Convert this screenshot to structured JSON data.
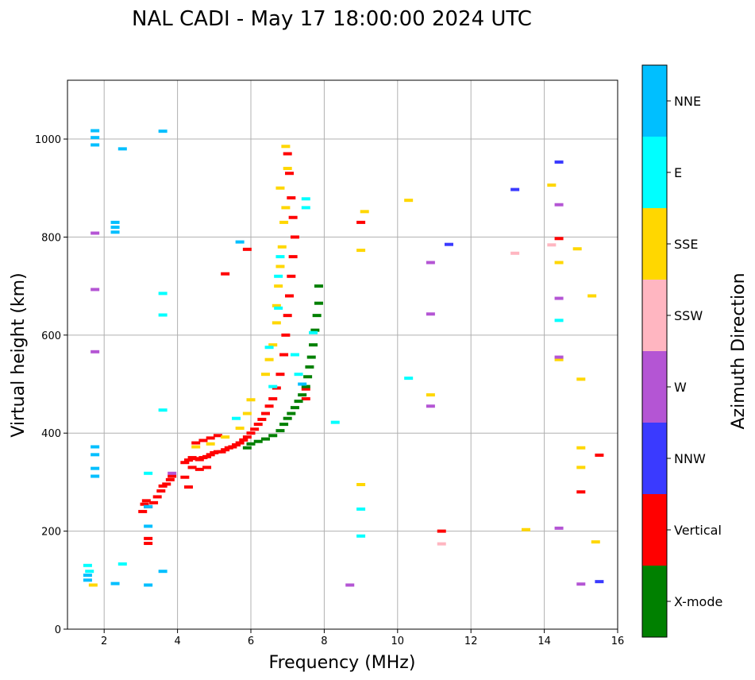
{
  "chart_data": {
    "type": "scatter",
    "title": "NAL CADI - May 17 18:00:00 2024 UTC",
    "xlabel": "Frequency (MHz)",
    "ylabel": "Virtual height (km)",
    "xlim": [
      1,
      16
    ],
    "ylim": [
      0,
      1120
    ],
    "xticks": [
      2,
      4,
      6,
      8,
      10,
      12,
      14,
      16
    ],
    "yticks": [
      0,
      200,
      400,
      600,
      800,
      1000
    ],
    "grid": true,
    "colorbar": {
      "label": "Azimuth Direction",
      "categories": [
        {
          "name": "X-mode",
          "color": "#008000"
        },
        {
          "name": "Vertical",
          "color": "#ff0000"
        },
        {
          "name": "NNW",
          "color": "#3a3aff"
        },
        {
          "name": "W",
          "color": "#b455d4"
        },
        {
          "name": "SSW",
          "color": "#ffb6c1"
        },
        {
          "name": "SSE",
          "color": "#ffd700"
        },
        {
          "name": "E",
          "color": "#00ffff"
        },
        {
          "name": "NNE",
          "color": "#00bfff"
        }
      ]
    },
    "series": [
      {
        "name": "Vertical",
        "points": [
          [
            3.05,
            240
          ],
          [
            3.1,
            255
          ],
          [
            3.15,
            262
          ],
          [
            3.2,
            250
          ],
          [
            3.35,
            258
          ],
          [
            3.45,
            270
          ],
          [
            3.55,
            282
          ],
          [
            3.6,
            292
          ],
          [
            3.7,
            296
          ],
          [
            3.8,
            305
          ],
          [
            3.85,
            312
          ],
          [
            4.2,
            340
          ],
          [
            4.3,
            345
          ],
          [
            4.4,
            350
          ],
          [
            4.5,
            348
          ],
          [
            4.6,
            346
          ],
          [
            4.7,
            350
          ],
          [
            4.8,
            352
          ],
          [
            4.9,
            356
          ],
          [
            5.0,
            360
          ],
          [
            5.1,
            362
          ],
          [
            5.2,
            362
          ],
          [
            5.3,
            366
          ],
          [
            5.4,
            370
          ],
          [
            5.5,
            372
          ],
          [
            5.6,
            376
          ],
          [
            5.7,
            380
          ],
          [
            5.8,
            386
          ],
          [
            5.9,
            392
          ],
          [
            6.0,
            400
          ],
          [
            6.1,
            408
          ],
          [
            6.2,
            418
          ],
          [
            6.3,
            428
          ],
          [
            6.4,
            440
          ],
          [
            6.5,
            455
          ],
          [
            6.6,
            470
          ],
          [
            6.7,
            492
          ],
          [
            6.8,
            520
          ],
          [
            6.9,
            560
          ],
          [
            6.95,
            600
          ],
          [
            7.0,
            640
          ],
          [
            7.05,
            680
          ],
          [
            7.1,
            720
          ],
          [
            7.15,
            760
          ],
          [
            7.2,
            800
          ],
          [
            7.15,
            840
          ],
          [
            7.1,
            880
          ],
          [
            7.05,
            930
          ],
          [
            7.0,
            970
          ],
          [
            4.5,
            380
          ],
          [
            4.7,
            385
          ],
          [
            4.9,
            390
          ],
          [
            5.1,
            395
          ],
          [
            4.4,
            330
          ],
          [
            4.6,
            326
          ],
          [
            4.8,
            330
          ],
          [
            4.2,
            310
          ],
          [
            4.3,
            290
          ],
          [
            3.2,
            185
          ],
          [
            3.2,
            175
          ],
          [
            5.9,
            775
          ],
          [
            5.3,
            725
          ],
          [
            7.5,
            490
          ],
          [
            7.5,
            470
          ],
          [
            9.0,
            830
          ],
          [
            11.2,
            200
          ],
          [
            14.4,
            797
          ],
          [
            15.0,
            280
          ],
          [
            15.5,
            355
          ]
        ]
      },
      {
        "name": "X-mode",
        "points": [
          [
            5.9,
            370
          ],
          [
            6.0,
            378
          ],
          [
            6.2,
            383
          ],
          [
            6.4,
            388
          ],
          [
            6.6,
            395
          ],
          [
            6.8,
            405
          ],
          [
            6.9,
            418
          ],
          [
            7.0,
            430
          ],
          [
            7.1,
            440
          ],
          [
            7.2,
            452
          ],
          [
            7.3,
            465
          ],
          [
            7.4,
            478
          ],
          [
            7.5,
            495
          ],
          [
            7.55,
            515
          ],
          [
            7.6,
            535
          ],
          [
            7.65,
            555
          ],
          [
            7.7,
            580
          ],
          [
            7.75,
            610
          ],
          [
            7.8,
            640
          ],
          [
            7.85,
            665
          ],
          [
            7.85,
            700
          ]
        ]
      },
      {
        "name": "SSE",
        "points": [
          [
            4.5,
            372
          ],
          [
            4.9,
            378
          ],
          [
            5.3,
            392
          ],
          [
            5.7,
            410
          ],
          [
            5.9,
            440
          ],
          [
            6.0,
            468
          ],
          [
            6.4,
            520
          ],
          [
            6.5,
            550
          ],
          [
            6.6,
            580
          ],
          [
            6.7,
            625
          ],
          [
            6.7,
            660
          ],
          [
            6.75,
            700
          ],
          [
            6.8,
            740
          ],
          [
            6.85,
            780
          ],
          [
            6.9,
            830
          ],
          [
            6.95,
            860
          ],
          [
            6.8,
            900
          ],
          [
            7.0,
            940
          ],
          [
            6.95,
            985
          ],
          [
            1.7,
            90
          ],
          [
            9.0,
            295
          ],
          [
            9.0,
            773
          ],
          [
            9.1,
            852
          ],
          [
            10.3,
            875
          ],
          [
            10.9,
            478
          ],
          [
            13.5,
            203
          ],
          [
            14.2,
            906
          ],
          [
            14.4,
            748
          ],
          [
            14.4,
            550
          ],
          [
            14.9,
            776
          ],
          [
            15.0,
            510
          ],
          [
            15.0,
            370
          ],
          [
            15.0,
            330
          ],
          [
            15.3,
            680
          ],
          [
            15.4,
            178
          ]
        ]
      },
      {
        "name": "E",
        "points": [
          [
            1.55,
            130
          ],
          [
            1.6,
            118
          ],
          [
            3.2,
            318
          ],
          [
            3.6,
            685
          ],
          [
            3.6,
            447
          ],
          [
            3.6,
            641
          ],
          [
            5.6,
            430
          ],
          [
            6.5,
            575
          ],
          [
            6.6,
            495
          ],
          [
            6.75,
            655
          ],
          [
            6.75,
            720
          ],
          [
            6.8,
            760
          ],
          [
            7.2,
            560
          ],
          [
            7.3,
            520
          ],
          [
            7.5,
            860
          ],
          [
            7.5,
            878
          ],
          [
            7.7,
            605
          ],
          [
            8.3,
            422
          ],
          [
            9.0,
            245
          ],
          [
            9.0,
            190
          ],
          [
            10.3,
            512
          ],
          [
            14.4,
            630
          ],
          [
            2.5,
            133
          ]
        ]
      },
      {
        "name": "NNE",
        "points": [
          [
            1.55,
            110
          ],
          [
            1.55,
            100
          ],
          [
            1.75,
            1017
          ],
          [
            1.75,
            1003
          ],
          [
            1.75,
            988
          ],
          [
            1.75,
            372
          ],
          [
            1.75,
            356
          ],
          [
            1.75,
            328
          ],
          [
            1.75,
            312
          ],
          [
            2.3,
            830
          ],
          [
            2.3,
            820
          ],
          [
            2.3,
            810
          ],
          [
            2.3,
            93
          ],
          [
            2.5,
            980
          ],
          [
            3.2,
            250
          ],
          [
            3.2,
            210
          ],
          [
            3.2,
            90
          ],
          [
            3.6,
            1016
          ],
          [
            3.6,
            118
          ],
          [
            5.7,
            790
          ],
          [
            7.4,
            500
          ]
        ]
      },
      {
        "name": "W",
        "points": [
          [
            3.85,
            318
          ],
          [
            1.75,
            808
          ],
          [
            1.75,
            693
          ],
          [
            1.75,
            566
          ],
          [
            8.7,
            90
          ],
          [
            10.9,
            748
          ],
          [
            10.9,
            643
          ],
          [
            10.9,
            455
          ],
          [
            14.4,
            866
          ],
          [
            14.4,
            675
          ],
          [
            14.4,
            555
          ],
          [
            14.4,
            206
          ],
          [
            15.0,
            92
          ]
        ]
      },
      {
        "name": "NNW",
        "points": [
          [
            11.4,
            785
          ],
          [
            13.2,
            897
          ],
          [
            14.4,
            953
          ],
          [
            15.5,
            97
          ]
        ]
      },
      {
        "name": "SSW",
        "points": [
          [
            11.2,
            174
          ],
          [
            13.2,
            767
          ],
          [
            14.2,
            784
          ]
        ]
      }
    ]
  }
}
